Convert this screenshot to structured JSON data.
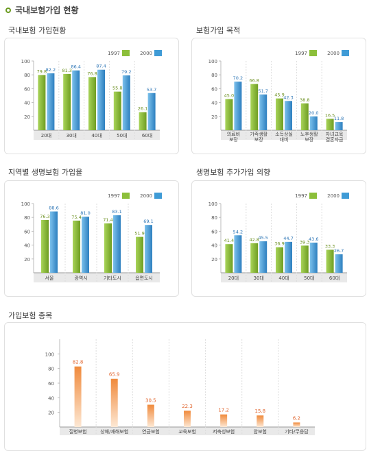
{
  "page": {
    "title": "국내보험가입 현황"
  },
  "colors": {
    "green": "#8cbf3a",
    "blue": "#3f9bd6",
    "orange": "#f08a3c",
    "labelGreen": "#6b8f1f",
    "labelBlue": "#2b74b5",
    "labelOrange": "#e0622a"
  },
  "chart_data": [
    {
      "type": "bar",
      "title": "국내보험 가입현황",
      "categories": [
        "20대",
        "30대",
        "40대",
        "50대",
        "60대"
      ],
      "series": [
        {
          "name": "1997",
          "values": [
            79.8,
            81.3,
            76.8,
            55.8,
            26.1
          ]
        },
        {
          "name": "2000",
          "values": [
            82.2,
            86.4,
            87.4,
            79.2,
            53.7
          ]
        }
      ],
      "ylim": [
        0,
        100
      ],
      "yticks": [
        "100",
        "80",
        "60",
        "40",
        "20"
      ],
      "legend": "top-right"
    },
    {
      "type": "bar",
      "title": "보험가입 목적",
      "categories": [
        "의료비\n보장",
        "가족생활\n보장",
        "소득상실\n대비",
        "노후생활\n보장",
        "자녀교육\n결혼자금"
      ],
      "series": [
        {
          "name": "1997",
          "values": [
            45.0,
            66.8,
            45.9,
            38.8,
            16.5
          ]
        },
        {
          "name": "2000",
          "values": [
            70.2,
            51.7,
            42.3,
            20.0,
            11.8
          ]
        }
      ],
      "ylim": [
        0,
        100
      ],
      "yticks": [
        "100",
        "80",
        "60",
        "40",
        "20"
      ],
      "legend": "top-right"
    },
    {
      "type": "bar",
      "title": "지역별 생명보험 가입율",
      "categories": [
        "서울",
        "광역시",
        "기타도시",
        "읍면도시"
      ],
      "series": [
        {
          "name": "1997",
          "values": [
            76.3,
            75.4,
            71.4,
            51.9
          ]
        },
        {
          "name": "2000",
          "values": [
            88.6,
            81.0,
            83.1,
            69.1
          ]
        }
      ],
      "ylim": [
        0,
        100
      ],
      "yticks": [
        "100",
        "80",
        "60",
        "40",
        "20"
      ],
      "legend": "top-right"
    },
    {
      "type": "bar",
      "title": "생명보험 추가가입 의향",
      "categories": [
        "20대",
        "30대",
        "40대",
        "50대",
        "60대"
      ],
      "series": [
        {
          "name": "1997",
          "values": [
            41.4,
            42.8,
            36.9,
            39.3,
            33.3
          ]
        },
        {
          "name": "2000",
          "values": [
            54.2,
            45.5,
            44.7,
            43.6,
            26.7
          ]
        }
      ],
      "ylim": [
        0,
        100
      ],
      "yticks": [
        "100",
        "80",
        "60",
        "40",
        "20"
      ],
      "legend": "top-right"
    },
    {
      "type": "bar",
      "title": "가입보험 종목",
      "categories": [
        "질병보험",
        "상해/재해보험",
        "연금보험",
        "교육보험",
        "저축성보험",
        "암보험",
        "기타/무응답"
      ],
      "series": [
        {
          "values": [
            82.8,
            65.9,
            30.5,
            22.3,
            17.2,
            15.8,
            6.2
          ]
        }
      ],
      "ylim": [
        0,
        120
      ],
      "yticks": [
        "100",
        "80",
        "60",
        "40",
        "20"
      ]
    }
  ]
}
